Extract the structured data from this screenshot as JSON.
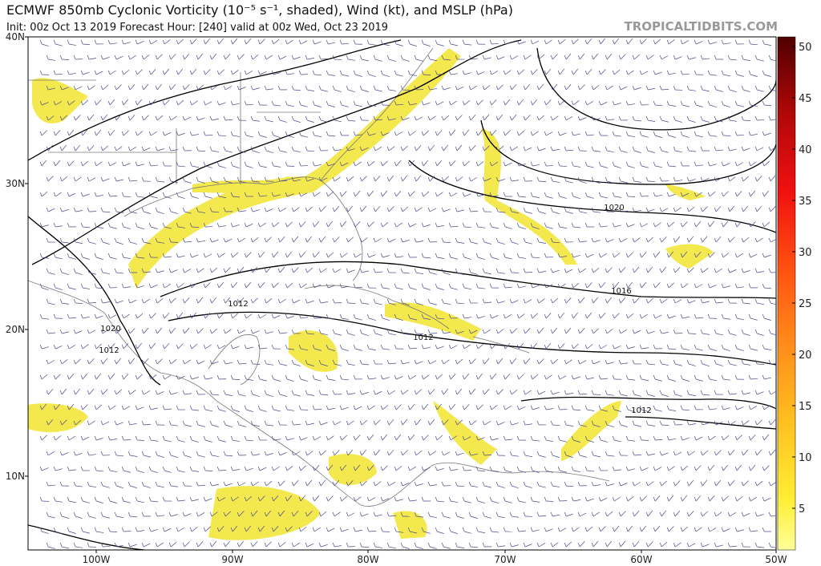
{
  "header": {
    "title": "ECMWF 850mb Cyclonic Vorticity (10⁻⁵ s⁻¹, shaded), Wind (kt), and MSLP (hPa)",
    "subtitle": "Init: 00z Oct 13 2019   Forecast Hour: [240]   valid at 00z Wed, Oct 23 2019",
    "site": "TROPICALTIDBITS.COM"
  },
  "map": {
    "lat_labels": [
      "40N",
      "30N",
      "20N",
      "10N"
    ],
    "lon_labels": [
      "100W",
      "90W",
      "80W",
      "70W",
      "60W",
      "50W"
    ],
    "contour_labels": [
      "1020",
      "1016",
      "1012",
      "1020",
      "1012",
      "1012",
      "1012"
    ]
  },
  "colorbar": {
    "ticks": [
      "50",
      "45",
      "40",
      "35",
      "30",
      "25",
      "20",
      "15",
      "10",
      "5"
    ]
  }
}
